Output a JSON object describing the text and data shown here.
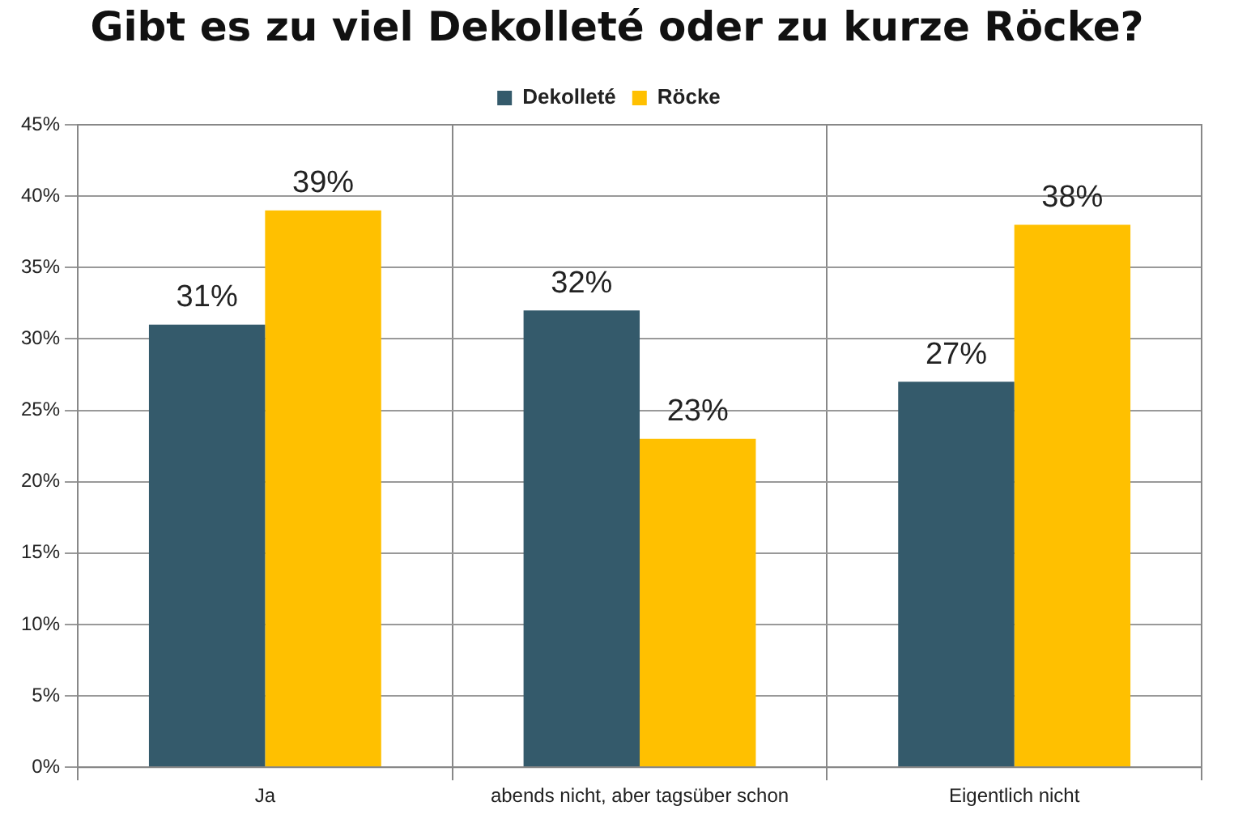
{
  "chart_data": {
    "type": "bar",
    "title": "Gibt es zu viel Dekolleté oder zu kurze Röcke?",
    "categories": [
      "Ja",
      "abends nicht, aber tagsüber schon",
      "Eigentlich nicht"
    ],
    "series": [
      {
        "name": "Dekolleté",
        "color": "#345a6b",
        "values": [
          31,
          32,
          27
        ],
        "value_labels": [
          "31%",
          "32%",
          "27%"
        ]
      },
      {
        "name": "Röcke",
        "color": "#ffc000",
        "values": [
          39,
          23,
          38
        ],
        "value_labels": [
          "39%",
          "23%",
          "38%"
        ]
      }
    ],
    "ylim": [
      0,
      45
    ],
    "yticks": [
      {
        "value": 0,
        "label": "0%"
      },
      {
        "value": 5,
        "label": "5%"
      },
      {
        "value": 10,
        "label": "10%"
      },
      {
        "value": 15,
        "label": "15%"
      },
      {
        "value": 20,
        "label": "20%"
      },
      {
        "value": 25,
        "label": "25%"
      },
      {
        "value": 30,
        "label": "30%"
      },
      {
        "value": 35,
        "label": "35%"
      },
      {
        "value": 40,
        "label": "40%"
      },
      {
        "value": 45,
        "label": "45%"
      }
    ],
    "grid": true,
    "legend": "top"
  }
}
